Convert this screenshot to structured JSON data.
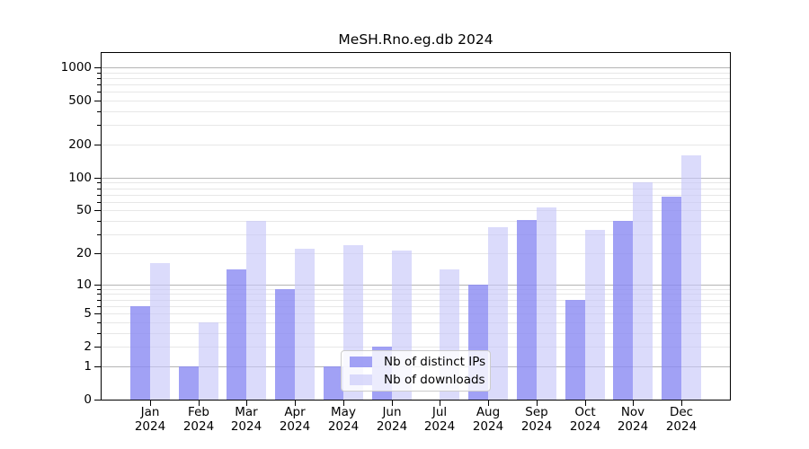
{
  "figure": {
    "title": "MeSH.Rno.eg.db 2024"
  },
  "chart_data": {
    "type": "bar",
    "title": "MeSH.Rno.eg.db 2024",
    "categories": [
      "Jan 2024",
      "Feb 2024",
      "Mar 2024",
      "Apr 2024",
      "May 2024",
      "Jun 2024",
      "Jul 2024",
      "Aug 2024",
      "Sep 2024",
      "Oct 2024",
      "Nov 2024",
      "Dec 2024"
    ],
    "series": [
      {
        "name": "Nb of distinct IPs",
        "color": "rgba(137,137,242,0.8)",
        "values": [
          6,
          1,
          14,
          9,
          1,
          2,
          0,
          10,
          41,
          7,
          40,
          67
        ]
      },
      {
        "name": "Nb of downloads",
        "color": "rgba(198,198,248,0.64)",
        "values": [
          16,
          4,
          40,
          22,
          24,
          21,
          14,
          35,
          53,
          33,
          90,
          160
        ]
      }
    ],
    "xlabel": "",
    "ylabel": "",
    "yscale": "log1p",
    "ylim": [
      0,
      1350
    ],
    "y_ticks": {
      "values": [
        0,
        1,
        2,
        5,
        10,
        20,
        50,
        100,
        200,
        500,
        1000
      ],
      "labels": [
        "0",
        "1",
        "2",
        "5",
        "10",
        "20",
        "50",
        "100",
        "200",
        "500",
        "1000"
      ]
    },
    "y_minor_gridlines": [
      3,
      4,
      6,
      7,
      8,
      9,
      20,
      30,
      40,
      50,
      60,
      70,
      80,
      90,
      200,
      300,
      400,
      500,
      600,
      700,
      800,
      900
    ],
    "y_major_gridlines": [
      1,
      10,
      100,
      1000
    ],
    "y_light_gridlines": [
      2,
      5
    ],
    "grid": true,
    "legend_position": "lower center"
  }
}
